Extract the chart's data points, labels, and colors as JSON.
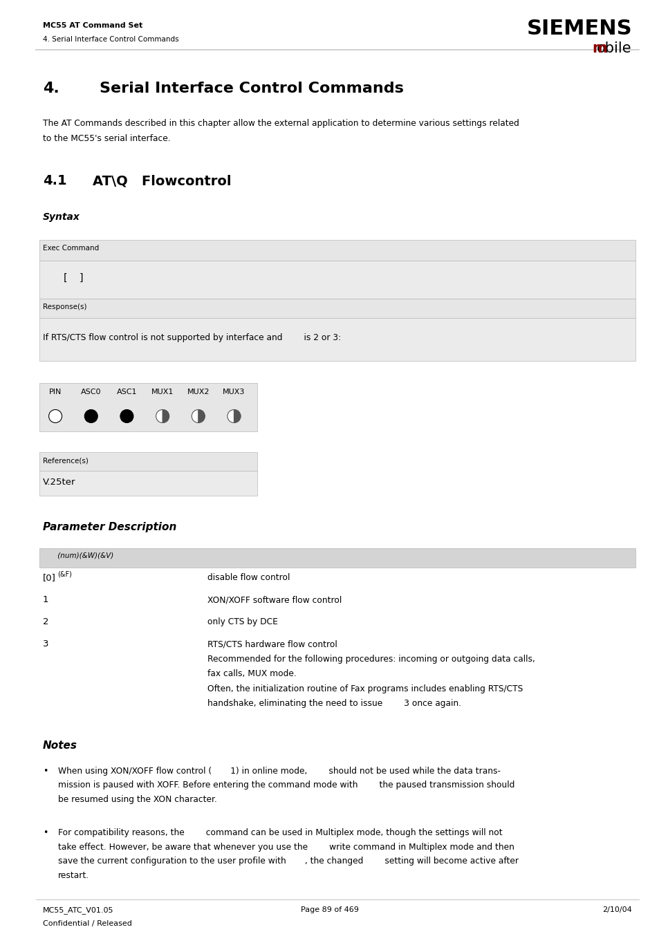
{
  "page_width": 9.54,
  "page_height": 13.51,
  "bg_color": "#ffffff",
  "header_left1": "MC55 AT Command Set",
  "header_left2": "4. Serial Interface Control Commands",
  "siemens_text": "SIEMENS",
  "mobile_m_color": "#8b0000",
  "separator_color": "#c8c8c8",
  "chapter_num": "4.",
  "chapter_title": "Serial Interface Control Commands",
  "intro_text1": "The AT Commands described in this chapter allow the external application to determine various settings related",
  "intro_text2": "to the MC55's serial interface.",
  "sec_num": "4.1",
  "sec_title": "AT\\Q   Flowcontrol",
  "syntax_label": "Syntax",
  "exec_command_label": "Exec Command",
  "exec_bracket": "[    ]",
  "response_label": "Response(s)",
  "response_text": "If RTS/CTS flow control is not supported by interface and        is 2 or 3:",
  "pin_table_headers": [
    "PIN",
    "ASC0",
    "ASC1",
    "MUX1",
    "MUX2",
    "MUX3"
  ],
  "reference_label": "Reference(s)",
  "reference_value": "V.25ter",
  "param_desc_label": "Parameter Description",
  "param_header": "     (num)(&W)(&V)",
  "params": [
    {
      "key": "[0]",
      "sup": "(&F)",
      "value": "disable flow control"
    },
    {
      "key": "1",
      "sup": "",
      "value": "XON/XOFF software flow control"
    },
    {
      "key": "2",
      "sup": "",
      "value": "only CTS by DCE"
    },
    {
      "key": "3",
      "sup": "",
      "value": "RTS/CTS hardware flow control\nRecommended for the following procedures: incoming or outgoing data calls,\nfax calls, MUX mode.\nOften, the initialization routine of Fax programs includes enabling RTS/CTS\nhandshake, eliminating the need to issue        3 once again."
    }
  ],
  "notes_label": "Notes",
  "note1_lines": [
    "When using XON/XOFF flow control (       1) in online mode,        should not be used while the data trans-",
    "mission is paused with XOFF. Before entering the command mode with        the paused transmission should",
    "be resumed using the XON character."
  ],
  "note2_lines": [
    "For compatibility reasons, the        command can be used in Multiplex mode, though the settings will not",
    "take effect. However, be aware that whenever you use the        write command in Multiplex mode and then",
    "save the current configuration to the user profile with       , the changed        setting will become active after",
    "restart."
  ],
  "footer_left1": "MC55_ATC_V01.05",
  "footer_left2": "Confidential / Released",
  "footer_center": "Page 89 of 469",
  "footer_right": "2/10/04",
  "light_gray": "#e6e6e6",
  "medium_gray": "#d4d4d4",
  "box_border": "#b8b8b8"
}
